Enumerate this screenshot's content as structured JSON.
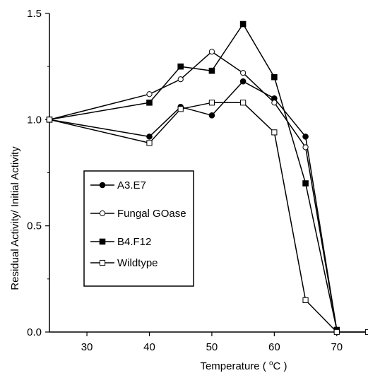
{
  "chart_data": {
    "type": "line",
    "title": "",
    "xlabel": "Temperature ( °C )",
    "xlabel_parts": {
      "prefix": "Temperature ( ",
      "degree": "o",
      "unit": "C )"
    },
    "ylabel": "Residual Activity/ Initial Activity",
    "xlim": [
      24,
      75
    ],
    "ylim": [
      0,
      1.5
    ],
    "xticks": [
      30,
      40,
      50,
      60,
      70
    ],
    "yticks": [
      0,
      0.5,
      1.0,
      1.5
    ],
    "ytick_labels": [
      "0.0",
      "0.5",
      "1.0",
      "1.5"
    ],
    "legend_position": "left-middle",
    "grid": false,
    "series": [
      {
        "name": "A3.E7",
        "marker": "filled-circle",
        "x": [
          24,
          40,
          45,
          50,
          55,
          60,
          65,
          70
        ],
        "y": [
          1.0,
          0.92,
          1.06,
          1.02,
          1.18,
          1.1,
          0.92,
          0.01
        ]
      },
      {
        "name": "Fungal GOase",
        "marker": "open-circle",
        "x": [
          24,
          40,
          45,
          50,
          55,
          60,
          65,
          70
        ],
        "y": [
          1.0,
          1.12,
          1.19,
          1.32,
          1.22,
          1.08,
          0.87,
          0.01
        ]
      },
      {
        "name": "B4.F12",
        "marker": "filled-square",
        "x": [
          24,
          40,
          45,
          50,
          55,
          60,
          65,
          70
        ],
        "y": [
          1.0,
          1.08,
          1.25,
          1.23,
          1.45,
          1.2,
          0.7,
          0.01
        ]
      },
      {
        "name": "Wildtype",
        "marker": "open-square",
        "x": [
          24,
          40,
          45,
          50,
          55,
          60,
          65,
          70,
          75
        ],
        "y": [
          1.0,
          0.89,
          1.05,
          1.08,
          1.08,
          0.94,
          0.15,
          0.0,
          0.0
        ]
      }
    ]
  }
}
